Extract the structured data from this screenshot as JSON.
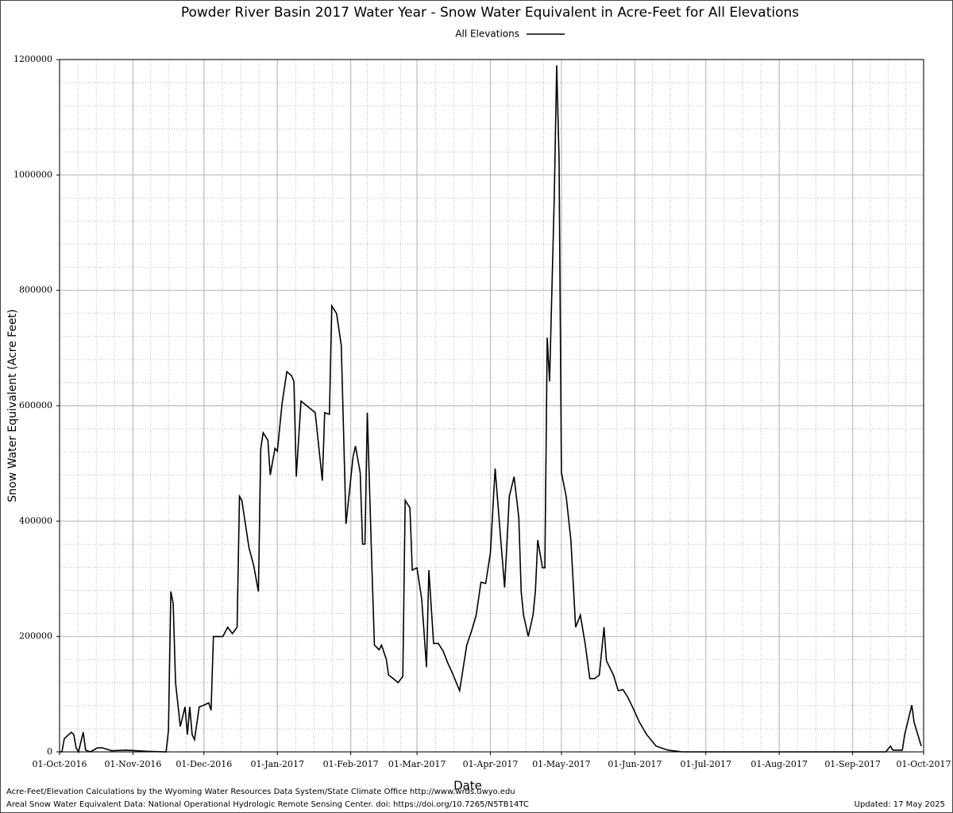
{
  "chart_data": {
    "type": "line",
    "title": "Powder River Basin 2017 Water Year - Snow Water Equivalent in Acre-Feet for All Elevations",
    "x_label": "Date",
    "y_label": "Snow Water Equivalent (Acre Feet)",
    "footer_lines": [
      "Acre-Feet/Elevation Calculations by the Wyoming Water Resources Data System/State Climate Office http://www.wrds.uwyo.edu",
      "Areal Snow Water Equivalent Data: National Operational Hydrologic Remote Sensing Center. doi: https://doi.org/10.7265/N5TB14TC"
    ],
    "updated": "Updated: 17 May 2025",
    "legend": "top",
    "grid": true,
    "minor_grid": true,
    "xlim": [
      "2016-10-01",
      "2017-10-01"
    ],
    "xticks": [
      {
        "value": "2016-10-01",
        "label": "01-Oct-2016"
      },
      {
        "value": "2016-11-01",
        "label": "01-Nov-2016"
      },
      {
        "value": "2016-12-01",
        "label": "01-Dec-2016"
      },
      {
        "value": "2017-01-01",
        "label": "01-Jan-2017"
      },
      {
        "value": "2017-02-01",
        "label": "01-Feb-2017"
      },
      {
        "value": "2017-03-01",
        "label": "01-Mar-2017"
      },
      {
        "value": "2017-04-01",
        "label": "01-Apr-2017"
      },
      {
        "value": "2017-05-01",
        "label": "01-May-2017"
      },
      {
        "value": "2017-06-01",
        "label": "01-Jun-2017"
      },
      {
        "value": "2017-07-01",
        "label": "01-Jul-2017"
      },
      {
        "value": "2017-08-01",
        "label": "01-Aug-2017"
      },
      {
        "value": "2017-09-01",
        "label": "01-Sep-2017"
      },
      {
        "value": "2017-10-01",
        "label": "01-Oct-2017"
      }
    ],
    "ylim": [
      0,
      1200000
    ],
    "yticks": [
      0,
      200000,
      400000,
      600000,
      800000,
      1000000,
      1200000
    ],
    "x": [
      "2016-10-01",
      "2016-10-02",
      "2016-10-03",
      "2016-10-06",
      "2016-10-07",
      "2016-10-08",
      "2016-10-09",
      "2016-10-11",
      "2016-10-12",
      "2016-10-14",
      "2016-10-17",
      "2016-10-19",
      "2016-10-23",
      "2016-10-29",
      "2016-11-07",
      "2016-11-15",
      "2016-11-16",
      "2016-11-17",
      "2016-11-18",
      "2016-11-19",
      "2016-11-21",
      "2016-11-23",
      "2016-11-24",
      "2016-11-25",
      "2016-11-26",
      "2016-11-27",
      "2016-11-29",
      "2016-12-01",
      "2016-12-03",
      "2016-12-04",
      "2016-12-05",
      "2016-12-09",
      "2016-12-11",
      "2016-12-13",
      "2016-12-15",
      "2016-12-16",
      "2016-12-17",
      "2016-12-20",
      "2016-12-22",
      "2016-12-24",
      "2016-12-25",
      "2016-12-26",
      "2016-12-28",
      "2016-12-29",
      "2016-12-31",
      "2017-01-01",
      "2017-01-03",
      "2017-01-05",
      "2017-01-07",
      "2017-01-08",
      "2017-01-09",
      "2017-01-11",
      "2017-01-14",
      "2017-01-17",
      "2017-01-20",
      "2017-01-21",
      "2017-01-23",
      "2017-01-24",
      "2017-01-26",
      "2017-01-28",
      "2017-01-30",
      "2017-02-02",
      "2017-02-03",
      "2017-02-05",
      "2017-02-06",
      "2017-02-07",
      "2017-02-08",
      "2017-02-10",
      "2017-02-11",
      "2017-02-13",
      "2017-02-14",
      "2017-02-16",
      "2017-02-17",
      "2017-02-19",
      "2017-02-21",
      "2017-02-23",
      "2017-02-24",
      "2017-02-26",
      "2017-02-27",
      "2017-03-01",
      "2017-03-03",
      "2017-03-05",
      "2017-03-06",
      "2017-03-08",
      "2017-03-10",
      "2017-03-12",
      "2017-03-14",
      "2017-03-16",
      "2017-03-19",
      "2017-03-22",
      "2017-03-24",
      "2017-03-26",
      "2017-03-28",
      "2017-03-30",
      "2017-04-01",
      "2017-04-03",
      "2017-04-05",
      "2017-04-07",
      "2017-04-09",
      "2017-04-11",
      "2017-04-13",
      "2017-04-14",
      "2017-04-15",
      "2017-04-17",
      "2017-04-19",
      "2017-04-20",
      "2017-04-21",
      "2017-04-23",
      "2017-04-24",
      "2017-04-25",
      "2017-04-26",
      "2017-04-28",
      "2017-04-29",
      "2017-04-30",
      "2017-05-01",
      "2017-05-03",
      "2017-05-05",
      "2017-05-07",
      "2017-05-09",
      "2017-05-11",
      "2017-05-13",
      "2017-05-15",
      "2017-05-17",
      "2017-05-19",
      "2017-05-20",
      "2017-05-23",
      "2017-05-25",
      "2017-05-27",
      "2017-05-29",
      "2017-05-31",
      "2017-06-03",
      "2017-06-06",
      "2017-06-10",
      "2017-06-15",
      "2017-06-21",
      "2017-09-15",
      "2017-09-17",
      "2017-09-18",
      "2017-09-22",
      "2017-09-23",
      "2017-09-26",
      "2017-09-27",
      "2017-09-30"
    ],
    "series": [
      {
        "name": "All Elevations",
        "color": "#000000",
        "values": [
          0,
          0,
          23000,
          34000,
          30000,
          7000,
          0,
          34000,
          3000,
          0,
          7000,
          7000,
          2000,
          3000,
          1000,
          0,
          37000,
          278000,
          257000,
          120000,
          44000,
          78000,
          30000,
          78000,
          30000,
          21000,
          78000,
          81000,
          85000,
          72000,
          200000,
          200000,
          216000,
          205000,
          216000,
          443000,
          436000,
          354000,
          323000,
          278000,
          526000,
          553000,
          540000,
          480000,
          526000,
          521000,
          604000,
          659000,
          652000,
          642000,
          477000,
          608000,
          598000,
          588000,
          470000,
          588000,
          585000,
          773000,
          760000,
          705000,
          395000,
          512000,
          530000,
          484000,
          360000,
          360000,
          588000,
          312000,
          185000,
          177000,
          185000,
          161000,
          133000,
          127000,
          120000,
          131000,
          436000,
          423000,
          315000,
          319000,
          264000,
          147000,
          315000,
          188000,
          188000,
          175000,
          154000,
          136000,
          106000,
          185000,
          209000,
          237000,
          294000,
          292000,
          345000,
          491000,
          387000,
          285000,
          443000,
          477000,
          406000,
          278000,
          237000,
          200000,
          237000,
          278000,
          367000,
          319000,
          319000,
          718000,
          642000,
          966000,
          1190000,
          1028000,
          484000,
          443000,
          367000,
          216000,
          237000,
          188000,
          127000,
          127000,
          133000,
          216000,
          158000,
          133000,
          106000,
          108000,
          95000,
          78000,
          51000,
          30000,
          10000,
          3000,
          0,
          0,
          10000,
          3000,
          3000,
          30000,
          81000,
          51000,
          10000
        ]
      }
    ]
  }
}
